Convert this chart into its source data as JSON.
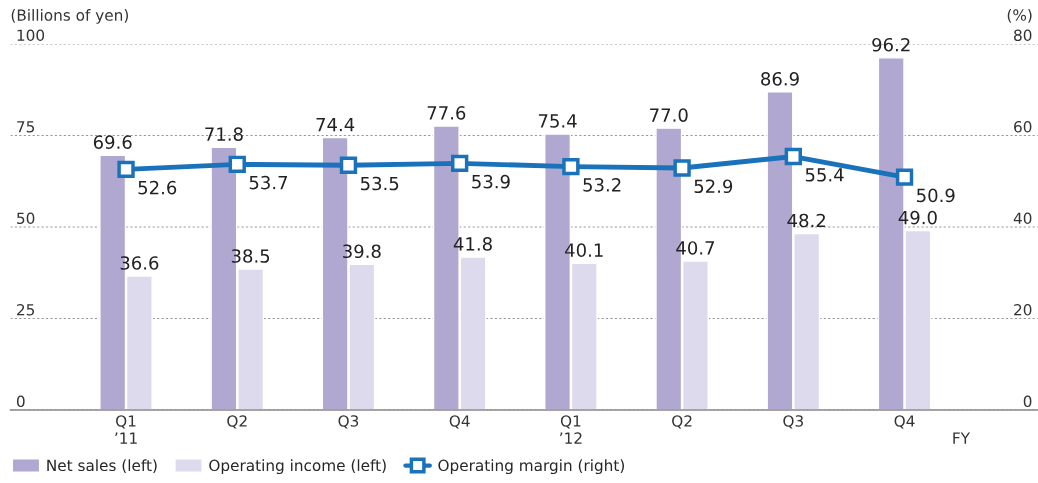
{
  "chart_data": {
    "type": "bar",
    "ylabel": "(Billions of yen)",
    "y2label": "(%)",
    "xlabel": "FY",
    "categories": [
      "Q1\n’11",
      "Q2",
      "Q3",
      "Q4",
      "Q1\n’12",
      "Q2",
      "Q3",
      "Q4"
    ],
    "series": [
      {
        "name": "Net sales (left)",
        "color": "#b0a8d0",
        "values": [
          69.6,
          71.8,
          74.4,
          77.6,
          75.4,
          77.0,
          86.9,
          96.2
        ],
        "value_labels": [
          "69.6",
          "71.8",
          "74.4",
          "77.6",
          "75.4",
          "77.0",
          "86.9",
          "96.2"
        ]
      },
      {
        "name": "Operating income (left)",
        "color": "#dedaee",
        "values": [
          36.6,
          38.5,
          39.8,
          41.8,
          40.1,
          40.7,
          48.2,
          49.0
        ],
        "value_labels": [
          "36.6",
          "38.5",
          "39.8",
          "41.8",
          "40.1",
          "40.7",
          "48.2",
          "49.0"
        ]
      },
      {
        "name": "Operating margin (right)",
        "type": "line",
        "axis": "y2",
        "color": "#1a72bb",
        "marker": "square",
        "values": [
          52.6,
          53.7,
          53.5,
          53.9,
          53.2,
          52.9,
          55.4,
          50.9
        ],
        "value_labels": [
          "52.6",
          "53.7",
          "53.5",
          "53.9",
          "53.2",
          "52.9",
          "55.4",
          "50.9"
        ]
      }
    ],
    "ylim": [
      0,
      100
    ],
    "yticks": [
      0,
      25,
      50,
      75,
      100
    ],
    "y2lim": [
      0,
      80
    ],
    "y2ticks": [
      0,
      20,
      40,
      60,
      80
    ],
    "grid": "y",
    "legend": "bottom left"
  }
}
